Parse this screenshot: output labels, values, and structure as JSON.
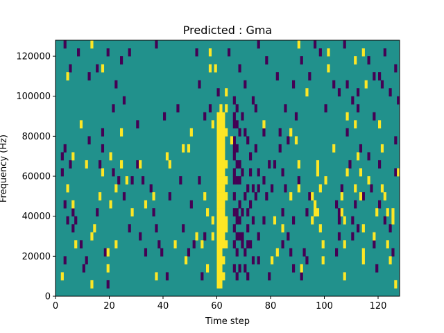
{
  "chart_data": {
    "type": "heatmap",
    "title": "Predicted : Gma",
    "xlabel": "Time step",
    "ylabel": "Frequency (Hz)",
    "xlim": [
      0,
      128
    ],
    "ylim": [
      0,
      128000
    ],
    "x_ticks": [
      0,
      20,
      40,
      60,
      80,
      100,
      120
    ],
    "x_tick_labels": [
      "0",
      "20",
      "40",
      "60",
      "80",
      "100",
      "120"
    ],
    "y_ticks": [
      0,
      20000,
      40000,
      60000,
      80000,
      100000,
      120000
    ],
    "y_tick_labels": [
      "0",
      "20000",
      "40000",
      "60000",
      "80000",
      "100000",
      "120000"
    ],
    "background_value": 0,
    "colors": {
      "low": "#440154",
      "mid": "#21918c",
      "high": "#fde725"
    },
    "freq_bin_hz": 4000,
    "bright_cells": [
      [
        60,
        4000
      ],
      [
        60,
        8000
      ],
      [
        60,
        12000
      ],
      [
        60,
        16000
      ],
      [
        60,
        20000
      ],
      [
        60,
        24000
      ],
      [
        60,
        28000
      ],
      [
        60,
        32000
      ],
      [
        60,
        36000
      ],
      [
        60,
        40000
      ],
      [
        60,
        44000
      ],
      [
        60,
        48000
      ],
      [
        60,
        52000
      ],
      [
        60,
        56000
      ],
      [
        60,
        60000
      ],
      [
        60,
        64000
      ],
      [
        60,
        68000
      ],
      [
        60,
        72000
      ],
      [
        60,
        76000
      ],
      [
        60,
        80000
      ],
      [
        60,
        84000
      ],
      [
        60,
        88000
      ],
      [
        61,
        4000
      ],
      [
        61,
        8000
      ],
      [
        61,
        12000
      ],
      [
        61,
        16000
      ],
      [
        61,
        20000
      ],
      [
        61,
        24000
      ],
      [
        61,
        28000
      ],
      [
        61,
        32000
      ],
      [
        61,
        36000
      ],
      [
        61,
        40000
      ],
      [
        61,
        44000
      ],
      [
        61,
        48000
      ],
      [
        61,
        52000
      ],
      [
        61,
        56000
      ],
      [
        61,
        60000
      ],
      [
        61,
        64000
      ],
      [
        61,
        68000
      ],
      [
        61,
        72000
      ],
      [
        61,
        76000
      ],
      [
        61,
        80000
      ],
      [
        61,
        84000
      ],
      [
        61,
        88000
      ],
      [
        61,
        92000
      ],
      [
        62,
        8000
      ],
      [
        62,
        16000
      ],
      [
        62,
        24000
      ],
      [
        62,
        28000
      ],
      [
        62,
        32000
      ],
      [
        62,
        36000
      ],
      [
        62,
        40000
      ],
      [
        62,
        44000
      ],
      [
        62,
        48000
      ],
      [
        62,
        52000
      ],
      [
        62,
        56000
      ],
      [
        62,
        60000
      ],
      [
        62,
        64000
      ],
      [
        62,
        68000
      ],
      [
        62,
        72000
      ],
      [
        62,
        76000
      ],
      [
        62,
        80000
      ],
      [
        62,
        84000
      ],
      [
        62,
        88000
      ],
      [
        63,
        24000
      ],
      [
        63,
        32000
      ],
      [
        63,
        36000
      ],
      [
        63,
        48000
      ],
      [
        63,
        56000
      ],
      [
        63,
        64000
      ],
      [
        63,
        80000
      ],
      [
        63,
        92000
      ],
      [
        58,
        28000
      ],
      [
        58,
        36000
      ],
      [
        58,
        84000
      ],
      [
        56,
        40000
      ],
      [
        57,
        120000
      ],
      [
        59,
        112000
      ],
      [
        56,
        12000
      ],
      [
        55,
        48000
      ],
      [
        54,
        24000
      ],
      [
        50,
        80000
      ],
      [
        49,
        72000
      ],
      [
        47,
        72000
      ],
      [
        48,
        16000
      ],
      [
        44,
        24000
      ],
      [
        42,
        64000
      ],
      [
        41,
        68000
      ],
      [
        37,
        8000
      ],
      [
        36,
        48000
      ],
      [
        33,
        44000
      ],
      [
        31,
        64000
      ],
      [
        28,
        40000
      ],
      [
        26,
        56000
      ],
      [
        24,
        64000
      ],
      [
        24,
        80000
      ],
      [
        22,
        52000
      ],
      [
        22,
        24000
      ],
      [
        20,
        68000
      ],
      [
        20,
        44000
      ],
      [
        19,
        20000
      ],
      [
        19,
        12000
      ],
      [
        17,
        60000
      ],
      [
        16,
        48000
      ],
      [
        14,
        32000
      ],
      [
        13,
        28000
      ],
      [
        13,
        4000
      ],
      [
        11,
        64000
      ],
      [
        9,
        84000
      ],
      [
        7,
        24000
      ],
      [
        6,
        44000
      ],
      [
        6,
        68000
      ],
      [
        4,
        52000
      ],
      [
        2,
        8000
      ],
      [
        4,
        108000
      ],
      [
        17,
        112000
      ],
      [
        13,
        124000
      ],
      [
        57,
        112000
      ],
      [
        63,
        100000
      ],
      [
        65,
        76000
      ],
      [
        77,
        84000
      ],
      [
        80,
        16000
      ],
      [
        81,
        36000
      ],
      [
        82,
        20000
      ],
      [
        87,
        48000
      ],
      [
        90,
        64000
      ],
      [
        90,
        52000
      ],
      [
        90,
        124000
      ],
      [
        91,
        12000
      ],
      [
        95,
        48000
      ],
      [
        95,
        36000
      ],
      [
        96,
        44000
      ],
      [
        96,
        40000
      ],
      [
        97,
        64000
      ],
      [
        97,
        60000
      ],
      [
        97,
        40000
      ],
      [
        98,
        32000
      ],
      [
        98,
        52000
      ],
      [
        99,
        24000
      ],
      [
        99,
        16000
      ],
      [
        100,
        56000
      ],
      [
        101,
        120000
      ],
      [
        103,
        72000
      ],
      [
        106,
        48000
      ],
      [
        106,
        40000
      ],
      [
        107,
        36000
      ],
      [
        107,
        24000
      ],
      [
        107,
        8000
      ],
      [
        108,
        60000
      ],
      [
        108,
        88000
      ],
      [
        111,
        52000
      ],
      [
        111,
        84000
      ],
      [
        111,
        116000
      ],
      [
        112,
        68000
      ],
      [
        113,
        60000
      ],
      [
        113,
        48000
      ],
      [
        114,
        32000
      ],
      [
        114,
        20000
      ],
      [
        114,
        16000
      ],
      [
        116,
        56000
      ],
      [
        118,
        28000
      ],
      [
        119,
        40000
      ],
      [
        120,
        84000
      ],
      [
        121,
        72000
      ],
      [
        121,
        52000
      ],
      [
        122,
        48000
      ],
      [
        123,
        40000
      ],
      [
        123,
        24000
      ],
      [
        124,
        16000
      ],
      [
        125,
        40000
      ],
      [
        125,
        36000
      ],
      [
        126,
        4000
      ],
      [
        127,
        60000
      ],
      [
        115,
        104000
      ],
      [
        114,
        120000
      ],
      [
        101,
        112000
      ],
      [
        93,
        100000
      ],
      [
        89,
        76000
      ],
      [
        87,
        80000
      ],
      [
        84,
        32000
      ],
      [
        52,
        28000
      ]
    ],
    "dark_cells": [
      [
        66,
        96000
      ],
      [
        66,
        88000
      ],
      [
        66,
        84000
      ],
      [
        66,
        76000
      ],
      [
        66,
        72000
      ],
      [
        66,
        68000
      ],
      [
        66,
        60000
      ],
      [
        66,
        56000
      ],
      [
        66,
        48000
      ],
      [
        66,
        40000
      ],
      [
        66,
        32000
      ],
      [
        66,
        24000
      ],
      [
        66,
        12000
      ],
      [
        67,
        92000
      ],
      [
        67,
        84000
      ],
      [
        67,
        72000
      ],
      [
        67,
        64000
      ],
      [
        67,
        56000
      ],
      [
        67,
        40000
      ],
      [
        67,
        36000
      ],
      [
        67,
        28000
      ],
      [
        67,
        20000
      ],
      [
        67,
        8000
      ],
      [
        68,
        80000
      ],
      [
        68,
        64000
      ],
      [
        68,
        56000
      ],
      [
        68,
        44000
      ],
      [
        68,
        36000
      ],
      [
        68,
        28000
      ],
      [
        68,
        12000
      ],
      [
        69,
        88000
      ],
      [
        69,
        60000
      ],
      [
        69,
        40000
      ],
      [
        69,
        28000
      ],
      [
        69,
        24000
      ],
      [
        70,
        80000
      ],
      [
        70,
        48000
      ],
      [
        70,
        20000
      ],
      [
        70,
        12000
      ],
      [
        71,
        76000
      ],
      [
        71,
        52000
      ],
      [
        71,
        40000
      ],
      [
        71,
        32000
      ],
      [
        71,
        24000
      ],
      [
        71,
        8000
      ],
      [
        72,
        68000
      ],
      [
        72,
        60000
      ],
      [
        72,
        44000
      ],
      [
        72,
        24000
      ],
      [
        73,
        52000
      ],
      [
        73,
        36000
      ],
      [
        73,
        16000
      ],
      [
        74,
        92000
      ],
      [
        74,
        72000
      ],
      [
        74,
        48000
      ],
      [
        75,
        60000
      ],
      [
        75,
        52000
      ],
      [
        75,
        28000
      ],
      [
        75,
        16000
      ],
      [
        77,
        36000
      ],
      [
        77,
        56000
      ],
      [
        77,
        80000
      ],
      [
        78,
        48000
      ],
      [
        79,
        64000
      ],
      [
        79,
        8000
      ],
      [
        80,
        52000
      ],
      [
        81,
        64000
      ],
      [
        83,
        80000
      ],
      [
        83,
        72000
      ],
      [
        84,
        60000
      ],
      [
        84,
        40000
      ],
      [
        84,
        24000
      ],
      [
        85,
        52000
      ],
      [
        86,
        76000
      ],
      [
        86,
        28000
      ],
      [
        87,
        20000
      ],
      [
        88,
        36000
      ],
      [
        88,
        12000
      ],
      [
        89,
        88000
      ],
      [
        90,
        56000
      ],
      [
        91,
        8000
      ],
      [
        92,
        20000
      ],
      [
        93,
        40000
      ],
      [
        93,
        16000
      ],
      [
        94,
        48000
      ],
      [
        104,
        44000
      ],
      [
        104,
        20000
      ],
      [
        105,
        40000
      ],
      [
        105,
        36000
      ],
      [
        105,
        28000
      ],
      [
        106,
        52000
      ],
      [
        108,
        104000
      ],
      [
        108,
        80000
      ],
      [
        109,
        64000
      ],
      [
        110,
        28000
      ],
      [
        110,
        36000
      ],
      [
        111,
        44000
      ],
      [
        112,
        32000
      ],
      [
        112,
        92000
      ],
      [
        113,
        72000
      ],
      [
        114,
        48000
      ],
      [
        116,
        68000
      ],
      [
        117,
        52000
      ],
      [
        118,
        88000
      ],
      [
        118,
        24000
      ],
      [
        119,
        12000
      ],
      [
        120,
        108000
      ],
      [
        120,
        64000
      ],
      [
        120,
        44000
      ],
      [
        121,
        104000
      ],
      [
        122,
        36000
      ],
      [
        124,
        32000
      ],
      [
        125,
        20000
      ],
      [
        126,
        76000
      ],
      [
        126,
        60000
      ],
      [
        127,
        96000
      ],
      [
        2,
        68000
      ],
      [
        2,
        60000
      ],
      [
        3,
        72000
      ],
      [
        3,
        44000
      ],
      [
        3,
        16000
      ],
      [
        4,
        36000
      ],
      [
        5,
        64000
      ],
      [
        6,
        40000
      ],
      [
        6,
        32000
      ],
      [
        7,
        36000
      ],
      [
        9,
        24000
      ],
      [
        10,
        12000
      ],
      [
        11,
        16000
      ],
      [
        12,
        76000
      ],
      [
        15,
        40000
      ],
      [
        16,
        64000
      ],
      [
        17,
        72000
      ],
      [
        18,
        20000
      ],
      [
        19,
        4000
      ],
      [
        21,
        60000
      ],
      [
        23,
        56000
      ],
      [
        25,
        48000
      ],
      [
        27,
        32000
      ],
      [
        28,
        56000
      ],
      [
        30,
        64000
      ],
      [
        31,
        28000
      ],
      [
        32,
        56000
      ],
      [
        33,
        20000
      ],
      [
        35,
        52000
      ],
      [
        36,
        40000
      ],
      [
        37,
        32000
      ],
      [
        38,
        24000
      ],
      [
        39,
        20000
      ],
      [
        41,
        8000
      ],
      [
        42,
        48000
      ],
      [
        46,
        56000
      ],
      [
        47,
        32000
      ],
      [
        49,
        20000
      ],
      [
        50,
        44000
      ],
      [
        51,
        24000
      ],
      [
        53,
        56000
      ],
      [
        54,
        8000
      ],
      [
        55,
        28000
      ],
      [
        3,
        124000
      ],
      [
        5,
        112000
      ],
      [
        8,
        120000
      ],
      [
        12,
        108000
      ],
      [
        15,
        112000
      ],
      [
        17,
        80000
      ],
      [
        19,
        120000
      ],
      [
        21,
        92000
      ],
      [
        22,
        104000
      ],
      [
        24,
        116000
      ],
      [
        25,
        96000
      ],
      [
        27,
        120000
      ],
      [
        30,
        84000
      ],
      [
        37,
        124000
      ],
      [
        40,
        88000
      ],
      [
        45,
        92000
      ],
      [
        52,
        120000
      ],
      [
        53,
        104000
      ],
      [
        55,
        88000
      ],
      [
        57,
        92000
      ],
      [
        60,
        100000
      ],
      [
        64,
        120000
      ],
      [
        68,
        112000
      ],
      [
        70,
        104000
      ],
      [
        73,
        96000
      ],
      [
        75,
        124000
      ],
      [
        78,
        116000
      ],
      [
        82,
        108000
      ],
      [
        85,
        92000
      ],
      [
        88,
        104000
      ],
      [
        91,
        116000
      ],
      [
        94,
        108000
      ],
      [
        96,
        124000
      ],
      [
        98,
        120000
      ],
      [
        100,
        92000
      ],
      [
        103,
        104000
      ],
      [
        105,
        100000
      ],
      [
        107,
        124000
      ],
      [
        110,
        96000
      ],
      [
        112,
        100000
      ],
      [
        116,
        116000
      ],
      [
        118,
        108000
      ],
      [
        122,
        120000
      ],
      [
        124,
        100000
      ],
      [
        126,
        112000
      ]
    ]
  }
}
